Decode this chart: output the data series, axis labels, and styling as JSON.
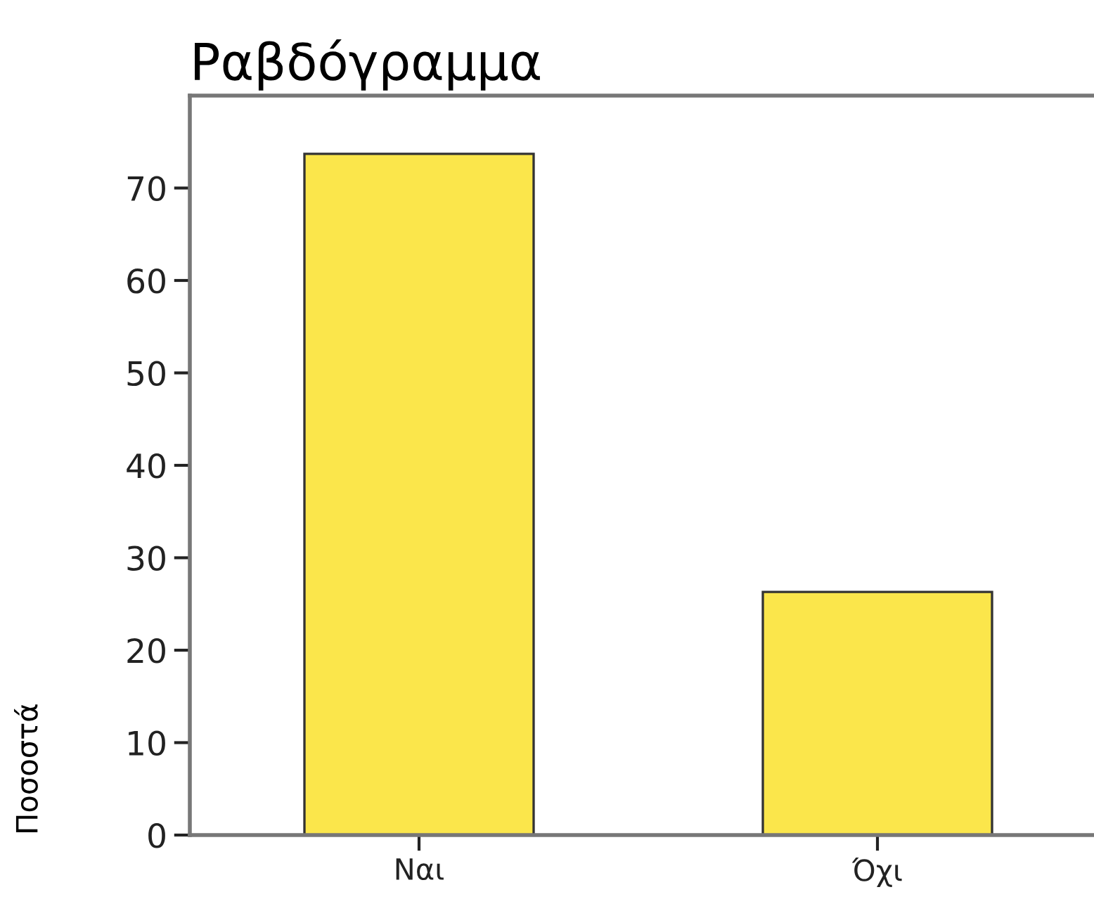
{
  "chart_data": {
    "type": "bar",
    "title": "Ραβδόγραμμα",
    "ylabel": "Ποσοστά",
    "categories": [
      "Ναι",
      "Όχι"
    ],
    "values": [
      73.7,
      26.3
    ],
    "color": "#fbe64b",
    "ylim": [
      0,
      80
    ],
    "yticks": [
      0,
      10,
      20,
      30,
      40,
      50,
      60,
      70
    ],
    "grid": false,
    "legend": false
  }
}
